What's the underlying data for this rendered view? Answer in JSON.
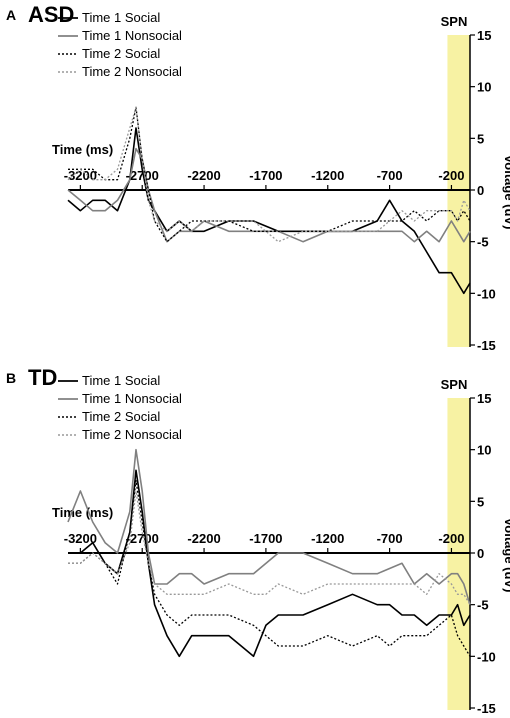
{
  "chart_data": [
    {
      "type": "line",
      "panel_label": "A",
      "title": "ASD",
      "region_label": "SPN",
      "xlabel": "Time (ms)",
      "ylabel": "Voltage (uV)",
      "xlim": [
        -3300,
        -50
      ],
      "ylim": [
        -15,
        15
      ],
      "x_ticks": [
        -3200,
        -2700,
        -2200,
        -1700,
        -1200,
        -700,
        -200
      ],
      "y_ticks": [
        15,
        10,
        5,
        0,
        -5,
        -10,
        -15
      ],
      "region": [
        -200,
        -50
      ],
      "region_color": "#f7f2a3",
      "legend_position": "top-left",
      "series": [
        {
          "name": "Time 1 Social",
          "color": "#000000",
          "style": "solid",
          "points": [
            [
              -3300,
              -1
            ],
            [
              -3200,
              -2
            ],
            [
              -3100,
              -1
            ],
            [
              -3000,
              -1
            ],
            [
              -2900,
              -2
            ],
            [
              -2800,
              1
            ],
            [
              -2750,
              6
            ],
            [
              -2700,
              2
            ],
            [
              -2650,
              -1
            ],
            [
              -2600,
              -2
            ],
            [
              -2500,
              -4
            ],
            [
              -2400,
              -3
            ],
            [
              -2300,
              -4
            ],
            [
              -2200,
              -4
            ],
            [
              -2000,
              -3
            ],
            [
              -1800,
              -3
            ],
            [
              -1600,
              -4
            ],
            [
              -1400,
              -4
            ],
            [
              -1200,
              -4
            ],
            [
              -1000,
              -4
            ],
            [
              -800,
              -3
            ],
            [
              -700,
              -1
            ],
            [
              -600,
              -3
            ],
            [
              -500,
              -4
            ],
            [
              -400,
              -6
            ],
            [
              -300,
              -8
            ],
            [
              -200,
              -8
            ],
            [
              -150,
              -9
            ],
            [
              -100,
              -10
            ],
            [
              -50,
              -9
            ]
          ]
        },
        {
          "name": "Time 1 Nonsocial",
          "color": "#808080",
          "style": "solid",
          "points": [
            [
              -3300,
              0
            ],
            [
              -3200,
              -1
            ],
            [
              -3100,
              -2
            ],
            [
              -3000,
              -2
            ],
            [
              -2900,
              -1
            ],
            [
              -2800,
              1
            ],
            [
              -2750,
              4
            ],
            [
              -2700,
              3
            ],
            [
              -2650,
              0
            ],
            [
              -2600,
              -2
            ],
            [
              -2500,
              -5
            ],
            [
              -2400,
              -4
            ],
            [
              -2300,
              -4
            ],
            [
              -2200,
              -3
            ],
            [
              -2000,
              -4
            ],
            [
              -1800,
              -4
            ],
            [
              -1600,
              -4
            ],
            [
              -1400,
              -5
            ],
            [
              -1200,
              -4
            ],
            [
              -1000,
              -4
            ],
            [
              -800,
              -4
            ],
            [
              -600,
              -4
            ],
            [
              -500,
              -5
            ],
            [
              -400,
              -4
            ],
            [
              -300,
              -5
            ],
            [
              -200,
              -3
            ],
            [
              -150,
              -4
            ],
            [
              -100,
              -5
            ],
            [
              -50,
              -4
            ]
          ]
        },
        {
          "name": "Time 2 Social",
          "color": "#000000",
          "style": "dotted",
          "points": [
            [
              -3300,
              2
            ],
            [
              -3200,
              2
            ],
            [
              -3100,
              2
            ],
            [
              -3000,
              1
            ],
            [
              -2900,
              1
            ],
            [
              -2800,
              5
            ],
            [
              -2750,
              8
            ],
            [
              -2700,
              3
            ],
            [
              -2650,
              0
            ],
            [
              -2600,
              -3
            ],
            [
              -2500,
              -5
            ],
            [
              -2400,
              -4
            ],
            [
              -2300,
              -3
            ],
            [
              -2200,
              -3
            ],
            [
              -2000,
              -3
            ],
            [
              -1800,
              -4
            ],
            [
              -1600,
              -4
            ],
            [
              -1400,
              -4
            ],
            [
              -1200,
              -4
            ],
            [
              -1000,
              -3
            ],
            [
              -800,
              -3
            ],
            [
              -600,
              -3
            ],
            [
              -500,
              -2
            ],
            [
              -400,
              -3
            ],
            [
              -300,
              -2
            ],
            [
              -200,
              -2
            ],
            [
              -150,
              -3
            ],
            [
              -100,
              -2
            ],
            [
              -50,
              -3
            ]
          ]
        },
        {
          "name": "Time 2 Nonsocial",
          "color": "#999999",
          "style": "dotted",
          "points": [
            [
              -3300,
              1
            ],
            [
              -3200,
              2
            ],
            [
              -3100,
              1
            ],
            [
              -3000,
              1
            ],
            [
              -2900,
              2
            ],
            [
              -2800,
              6
            ],
            [
              -2750,
              8
            ],
            [
              -2700,
              3
            ],
            [
              -2650,
              -1
            ],
            [
              -2600,
              -3
            ],
            [
              -2500,
              -4
            ],
            [
              -2400,
              -3
            ],
            [
              -2300,
              -4
            ],
            [
              -2200,
              -3
            ],
            [
              -2000,
              -3
            ],
            [
              -1800,
              -3
            ],
            [
              -1600,
              -5
            ],
            [
              -1400,
              -4
            ],
            [
              -1200,
              -4
            ],
            [
              -1000,
              -4
            ],
            [
              -800,
              -4
            ],
            [
              -600,
              -2
            ],
            [
              -500,
              -3
            ],
            [
              -400,
              -2
            ],
            [
              -300,
              -2
            ],
            [
              -200,
              -2
            ],
            [
              -150,
              -3
            ],
            [
              -100,
              -1
            ],
            [
              -50,
              -2
            ]
          ]
        }
      ]
    },
    {
      "type": "line",
      "panel_label": "B",
      "title": "TD",
      "region_label": "SPN",
      "xlabel": "Time (ms)",
      "ylabel": "Voltage (uV)",
      "xlim": [
        -3300,
        -50
      ],
      "ylim": [
        -15,
        15
      ],
      "x_ticks": [
        -3200,
        -2700,
        -2200,
        -1700,
        -1200,
        -700,
        -200
      ],
      "y_ticks": [
        15,
        10,
        5,
        0,
        -5,
        -10,
        -15
      ],
      "region": [
        -200,
        -50
      ],
      "region_color": "#f7f2a3",
      "legend_position": "top-left",
      "series": [
        {
          "name": "Time 1 Social",
          "color": "#000000",
          "style": "solid",
          "points": [
            [
              -3300,
              0
            ],
            [
              -3200,
              0
            ],
            [
              -3100,
              1
            ],
            [
              -3000,
              -1
            ],
            [
              -2900,
              -2
            ],
            [
              -2800,
              2
            ],
            [
              -2750,
              8
            ],
            [
              -2700,
              4
            ],
            [
              -2650,
              -1
            ],
            [
              -2600,
              -5
            ],
            [
              -2500,
              -8
            ],
            [
              -2400,
              -10
            ],
            [
              -2300,
              -8
            ],
            [
              -2200,
              -8
            ],
            [
              -2000,
              -8
            ],
            [
              -1900,
              -9
            ],
            [
              -1800,
              -10
            ],
            [
              -1700,
              -7
            ],
            [
              -1600,
              -6
            ],
            [
              -1400,
              -6
            ],
            [
              -1200,
              -5
            ],
            [
              -1000,
              -4
            ],
            [
              -800,
              -5
            ],
            [
              -700,
              -5
            ],
            [
              -600,
              -6
            ],
            [
              -500,
              -6
            ],
            [
              -400,
              -7
            ],
            [
              -300,
              -6
            ],
            [
              -200,
              -6
            ],
            [
              -150,
              -5
            ],
            [
              -100,
              -7
            ],
            [
              -50,
              -6
            ]
          ]
        },
        {
          "name": "Time 1 Nonsocial",
          "color": "#808080",
          "style": "solid",
          "points": [
            [
              -3300,
              3
            ],
            [
              -3200,
              6
            ],
            [
              -3100,
              3
            ],
            [
              -3000,
              1
            ],
            [
              -2900,
              0
            ],
            [
              -2800,
              4
            ],
            [
              -2750,
              10
            ],
            [
              -2700,
              6
            ],
            [
              -2650,
              0
            ],
            [
              -2600,
              -3
            ],
            [
              -2500,
              -3
            ],
            [
              -2400,
              -2
            ],
            [
              -2300,
              -2
            ],
            [
              -2200,
              -3
            ],
            [
              -2000,
              -2
            ],
            [
              -1800,
              -2
            ],
            [
              -1600,
              0
            ],
            [
              -1400,
              0
            ],
            [
              -1200,
              -1
            ],
            [
              -1000,
              -2
            ],
            [
              -800,
              -2
            ],
            [
              -600,
              -1
            ],
            [
              -500,
              -3
            ],
            [
              -400,
              -2
            ],
            [
              -300,
              -3
            ],
            [
              -200,
              -2
            ],
            [
              -150,
              -2
            ],
            [
              -100,
              -3
            ],
            [
              -50,
              -5
            ]
          ]
        },
        {
          "name": "Time 2 Social",
          "color": "#000000",
          "style": "dotted",
          "points": [
            [
              -3300,
              -1
            ],
            [
              -3200,
              -1
            ],
            [
              -3100,
              0
            ],
            [
              -3000,
              -1
            ],
            [
              -2900,
              -3
            ],
            [
              -2800,
              2
            ],
            [
              -2750,
              7
            ],
            [
              -2700,
              3
            ],
            [
              -2650,
              -1
            ],
            [
              -2600,
              -4
            ],
            [
              -2500,
              -6
            ],
            [
              -2400,
              -7
            ],
            [
              -2300,
              -6
            ],
            [
              -2200,
              -6
            ],
            [
              -2000,
              -6
            ],
            [
              -1800,
              -7
            ],
            [
              -1700,
              -8
            ],
            [
              -1600,
              -9
            ],
            [
              -1400,
              -9
            ],
            [
              -1200,
              -8
            ],
            [
              -1000,
              -9
            ],
            [
              -800,
              -8
            ],
            [
              -700,
              -9
            ],
            [
              -600,
              -8
            ],
            [
              -500,
              -8
            ],
            [
              -400,
              -8
            ],
            [
              -300,
              -7
            ],
            [
              -200,
              -6
            ],
            [
              -150,
              -8
            ],
            [
              -100,
              -9
            ],
            [
              -50,
              -10
            ]
          ]
        },
        {
          "name": "Time 2 Nonsocial",
          "color": "#999999",
          "style": "dotted",
          "points": [
            [
              -3300,
              -1
            ],
            [
              -3200,
              -1
            ],
            [
              -3100,
              0
            ],
            [
              -3000,
              -1
            ],
            [
              -2900,
              -2
            ],
            [
              -2800,
              1
            ],
            [
              -2750,
              6
            ],
            [
              -2700,
              2
            ],
            [
              -2650,
              -1
            ],
            [
              -2600,
              -3
            ],
            [
              -2500,
              -4
            ],
            [
              -2400,
              -4
            ],
            [
              -2300,
              -4
            ],
            [
              -2200,
              -4
            ],
            [
              -2000,
              -3
            ],
            [
              -1800,
              -4
            ],
            [
              -1700,
              -4
            ],
            [
              -1600,
              -3
            ],
            [
              -1400,
              -4
            ],
            [
              -1200,
              -3
            ],
            [
              -1000,
              -3
            ],
            [
              -800,
              -3
            ],
            [
              -600,
              -3
            ],
            [
              -500,
              -3
            ],
            [
              -400,
              -4
            ],
            [
              -300,
              -2
            ],
            [
              -200,
              -3
            ],
            [
              -150,
              -4
            ],
            [
              -100,
              -4
            ],
            [
              -50,
              -5
            ]
          ]
        }
      ]
    }
  ]
}
